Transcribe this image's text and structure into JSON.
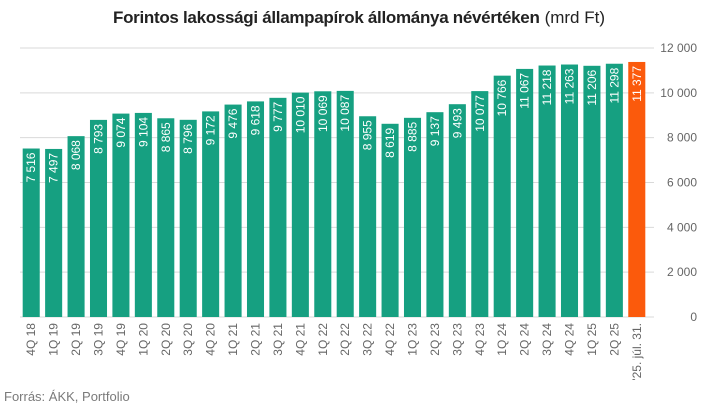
{
  "title": {
    "main": "Forintos lakossági állampapírok állománya névértéken",
    "unit": "(mrd Ft)"
  },
  "source": "Forrás: ÁKK, Portfolio",
  "chart_data": {
    "type": "bar",
    "categories": [
      "4Q 18",
      "1Q 19",
      "2Q 19",
      "3Q 19",
      "4Q 19",
      "1Q 20",
      "2Q 20",
      "3Q 20",
      "4Q 20",
      "1Q 21",
      "2Q 21",
      "3Q 21",
      "4Q 21",
      "1Q 22",
      "2Q 22",
      "3Q 22",
      "4Q 22",
      "1Q 23",
      "2Q 23",
      "3Q 23",
      "4Q 23",
      "1Q 24",
      "2Q 24",
      "3Q 24",
      "4Q 24",
      "1Q 25",
      "2Q 25",
      "'25. júl. 31."
    ],
    "values": [
      7516,
      7497,
      8068,
      8793,
      9074,
      9104,
      8865,
      8796,
      9172,
      9476,
      9618,
      9777,
      10010,
      10069,
      10087,
      8955,
      8619,
      8885,
      9137,
      9493,
      10077,
      10766,
      11067,
      11218,
      11263,
      11206,
      11298,
      11377
    ],
    "value_labels": [
      "7 516",
      "7 497",
      "8 068",
      "8 793",
      "9 074",
      "9 104",
      "8 865",
      "8 796",
      "9 172",
      "9 476",
      "9 618",
      "9 777",
      "10 010",
      "10 069",
      "10 087",
      "8 955",
      "8 619",
      "8 885",
      "9 137",
      "9 493",
      "10 077",
      "10 766",
      "11 067",
      "11 218",
      "11 263",
      "11 206",
      "11 298",
      "11 377"
    ],
    "ylim": [
      0,
      12000
    ],
    "yticks": [
      0,
      2000,
      4000,
      6000,
      8000,
      10000,
      12000
    ],
    "ytick_labels": [
      "0",
      "2 000",
      "4 000",
      "6 000",
      "8 000",
      "10 000",
      "12 000"
    ],
    "y_axis_side": "right",
    "grid": true,
    "colors": {
      "bar": "#16a081",
      "highlight": "#fb5a0c",
      "grid": "#d9d9d9",
      "label": "#ffffff",
      "tick": "#666666"
    },
    "highlight_index": 27
  }
}
